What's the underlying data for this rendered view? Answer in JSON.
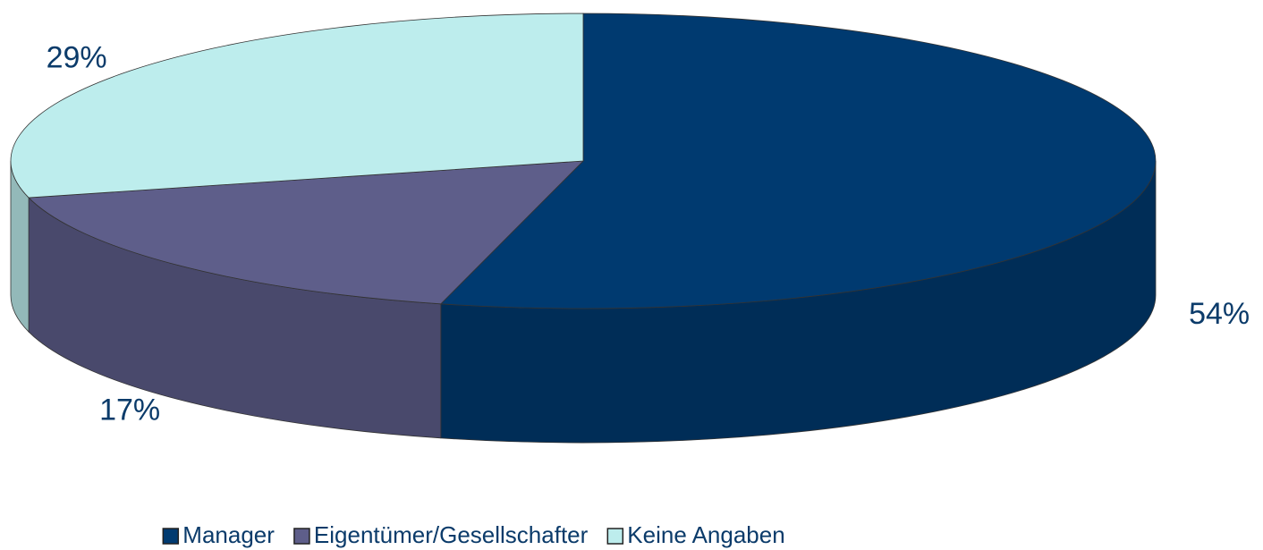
{
  "chart_data": {
    "type": "pie3d",
    "categories": [
      "Manager",
      "Eigentümer/Gesellschafter",
      "Keine Angaben"
    ],
    "values": [
      54,
      17,
      29
    ],
    "value_labels": [
      "54%",
      "17%",
      "29%"
    ],
    "colors": [
      "#003A70",
      "#5E5E8A",
      "#BDEDED"
    ],
    "legend": "bottom"
  }
}
